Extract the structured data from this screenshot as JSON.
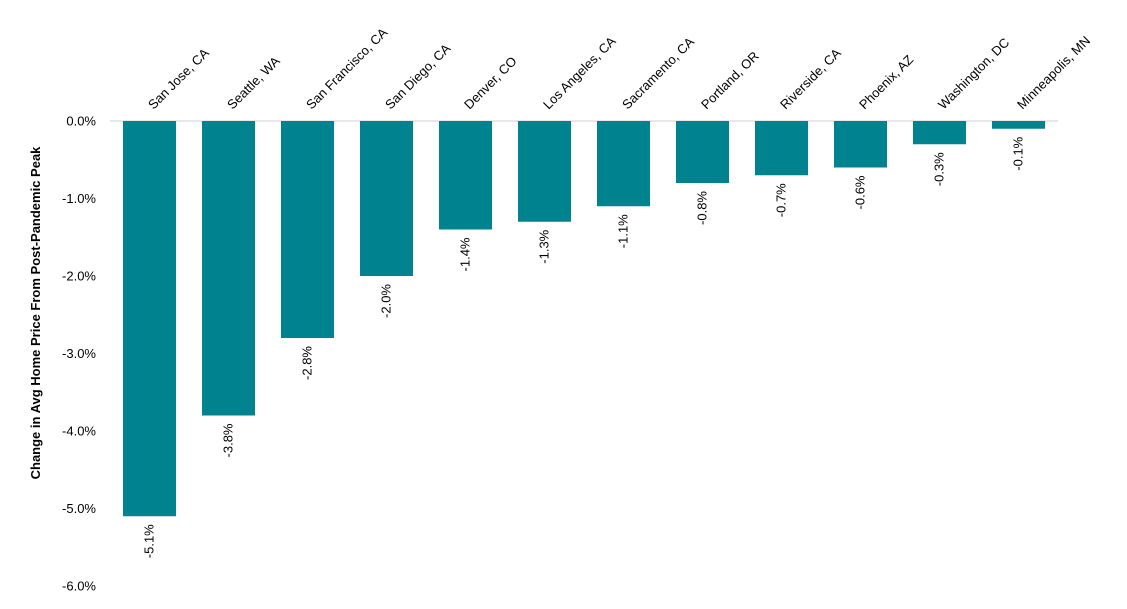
{
  "chart_data": {
    "type": "bar",
    "orientation": "vertical",
    "ylabel": "Change in Avg Home Price From Post-Pandemic Peak",
    "xlabel": "",
    "title": "",
    "ylim": [
      -6.0,
      0.0
    ],
    "y_ticks": [
      "0.0%",
      "-1.0%",
      "-2.0%",
      "-3.0%",
      "-4.0%",
      "-5.0%",
      "-6.0%"
    ],
    "y_tick_values": [
      0,
      -1,
      -2,
      -3,
      -4,
      -5,
      -6
    ],
    "categories": [
      "San Jose, CA",
      "Seattle, WA",
      "San Francisco, CA",
      "San Diego, CA",
      "Denver, CO",
      "Los Angeles, CA",
      "Sacramento, CA",
      "Portland, OR",
      "Riverside, CA",
      "Phoenix, AZ",
      "Washington, DC",
      "Minneapolis, MN"
    ],
    "values": [
      -5.1,
      -3.8,
      -2.8,
      -2.0,
      -1.4,
      -1.3,
      -1.1,
      -0.8,
      -0.7,
      -0.6,
      -0.3,
      -0.1
    ],
    "data_labels": [
      "-5.1%",
      "-3.8%",
      "-2.8%",
      "-2.0%",
      "-1.4%",
      "-1.3%",
      "-1.1%",
      "-0.8%",
      "-0.7%",
      "-0.6%",
      "-0.3%",
      "-0.1%"
    ],
    "bar_color": "#00838F",
    "grid": false,
    "legend": "none"
  }
}
